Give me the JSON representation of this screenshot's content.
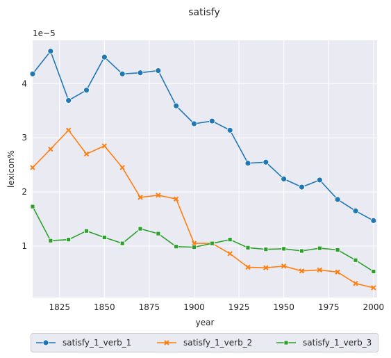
{
  "chart_data": {
    "type": "line",
    "title": "satisfy",
    "xlabel": "year",
    "ylabel": "lexicon%",
    "y_scale_label": "1e−5",
    "xlim": [
      1810,
      2002
    ],
    "ylim": [
      0.05,
      4.8
    ],
    "x_ticks": [
      1825,
      1850,
      1875,
      1900,
      1925,
      1950,
      1975,
      2000
    ],
    "y_ticks": [
      1,
      2,
      3,
      4
    ],
    "grid": true,
    "legend_position": "bottom",
    "x": [
      1810,
      1820,
      1830,
      1840,
      1850,
      1860,
      1870,
      1880,
      1890,
      1900,
      1910,
      1920,
      1930,
      1940,
      1950,
      1960,
      1970,
      1980,
      1990,
      2000
    ],
    "series": [
      {
        "name": "satisfy_1_verb_1",
        "color": "#1f77b4",
        "marker": "circle",
        "values": [
          4.18,
          4.6,
          3.69,
          3.88,
          4.49,
          4.18,
          4.2,
          4.24,
          3.59,
          3.26,
          3.31,
          3.14,
          2.53,
          2.55,
          2.24,
          2.09,
          2.22,
          1.86,
          1.65,
          1.47
        ]
      },
      {
        "name": "satisfy_1_verb_2",
        "color": "#ff7f0e",
        "marker": "x",
        "values": [
          2.45,
          2.79,
          3.14,
          2.7,
          2.85,
          2.45,
          1.9,
          1.94,
          1.87,
          1.05,
          1.05,
          0.86,
          0.61,
          0.6,
          0.63,
          0.54,
          0.56,
          0.52,
          0.31,
          0.23
        ]
      },
      {
        "name": "satisfy_1_verb_3",
        "color": "#2ca02c",
        "marker": "square",
        "values": [
          1.73,
          1.1,
          1.12,
          1.28,
          1.16,
          1.05,
          1.32,
          1.23,
          0.99,
          0.98,
          1.05,
          1.12,
          0.97,
          0.94,
          0.95,
          0.91,
          0.96,
          0.93,
          0.74,
          0.53
        ]
      }
    ]
  }
}
